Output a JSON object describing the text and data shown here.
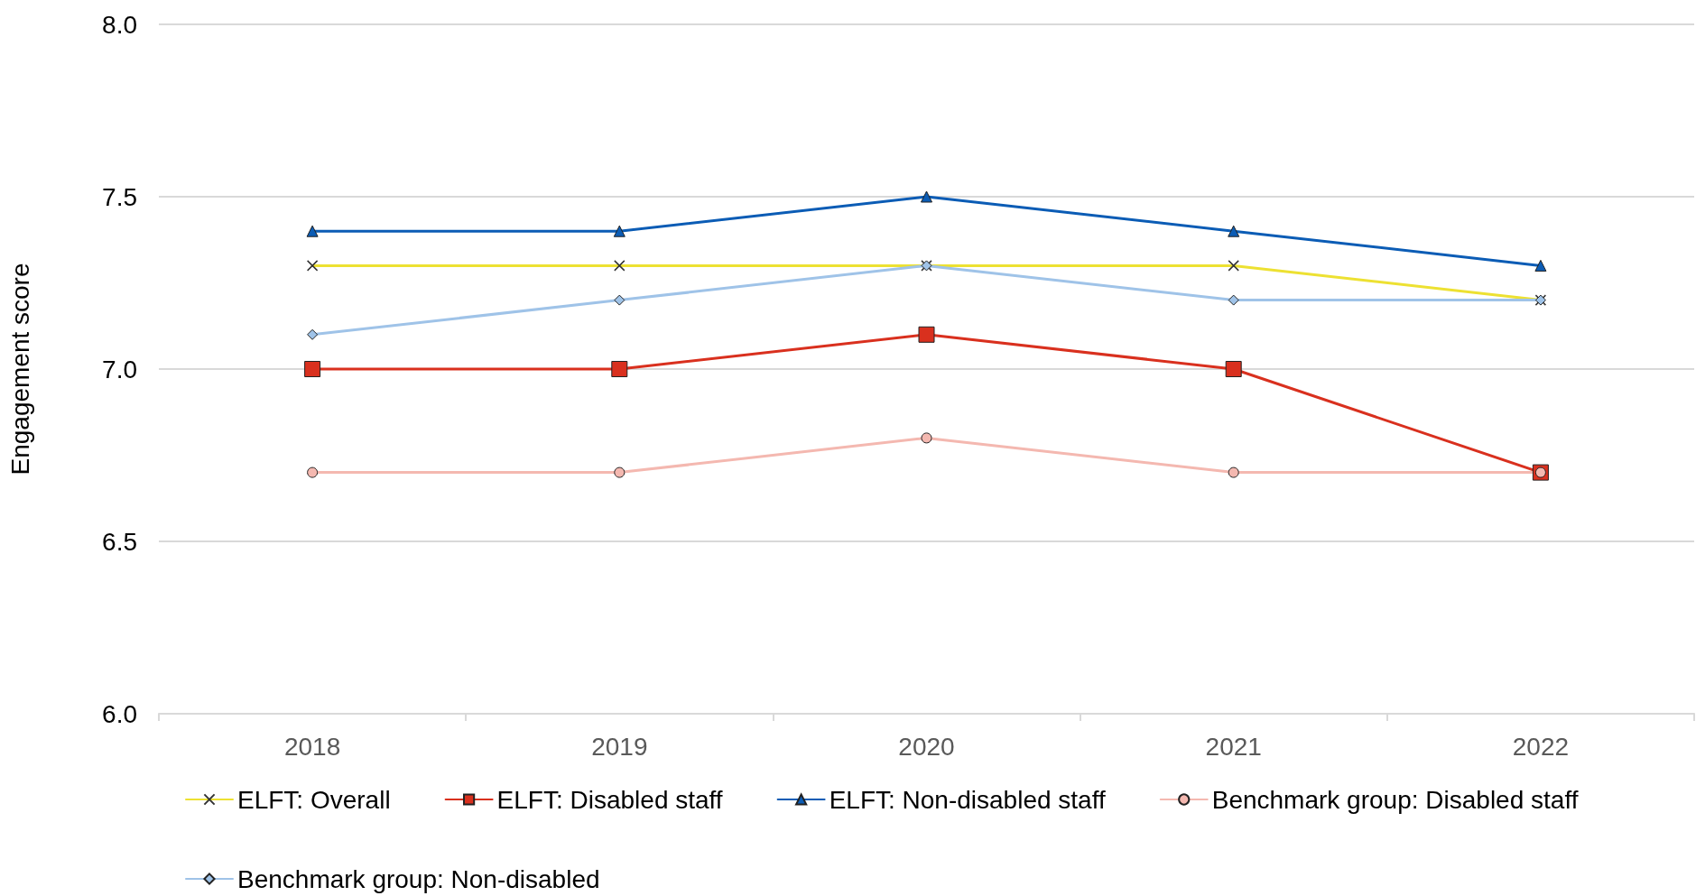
{
  "chart_data": {
    "type": "line",
    "ylabel": "Engagement score",
    "categories": [
      "2018",
      "2019",
      "2020",
      "2021",
      "2022"
    ],
    "series": [
      {
        "name": "ELFT: Overall",
        "color": "#ede132",
        "marker": "cross",
        "values": [
          7.3,
          7.3,
          7.3,
          7.3,
          7.2
        ]
      },
      {
        "name": "ELFT: Disabled staff",
        "color": "#d9301e",
        "marker": "square",
        "values": [
          7.0,
          7.0,
          7.1,
          7.0,
          6.7
        ]
      },
      {
        "name": "ELFT: Non-disabled staff",
        "color": "#0b5cb5",
        "marker": "triangle",
        "values": [
          7.4,
          7.4,
          7.5,
          7.4,
          7.3
        ]
      },
      {
        "name": "Benchmark group: Disabled staff",
        "color": "#f4b8b0",
        "marker": "circle",
        "values": [
          6.7,
          6.7,
          6.8,
          6.7,
          6.7
        ]
      },
      {
        "name": "Benchmark group: Non-disabled",
        "color": "#9fc3e8",
        "marker": "diamond",
        "values": [
          7.1,
          7.2,
          7.3,
          7.2,
          7.2
        ]
      }
    ],
    "ylim": [
      6.0,
      8.0
    ],
    "yticks": [
      {
        "value": 6,
        "label": "6.0"
      },
      {
        "value": 6.5,
        "label": "6.5"
      },
      {
        "value": 7,
        "label": "7.0"
      },
      {
        "value": 7.5,
        "label": "7.5"
      },
      {
        "value": 8,
        "label": "8.0"
      }
    ],
    "grid": "y",
    "legend": "bottom"
  }
}
